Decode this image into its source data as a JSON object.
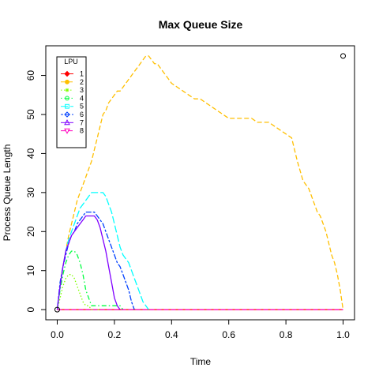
{
  "chart_data": {
    "type": "line",
    "title": "Max Queue Size",
    "xlabel": "Time",
    "ylabel": "Process Queue Length",
    "xlim": [
      -0.04,
      1.04
    ],
    "ylim": [
      -2.6,
      67.6
    ],
    "x_ticks": [
      0.0,
      0.2,
      0.4,
      0.6,
      0.8,
      1.0
    ],
    "x_tick_labels": [
      "0.0",
      "0.2",
      "0.4",
      "0.6",
      "0.8",
      "1.0"
    ],
    "y_ticks": [
      0,
      10,
      20,
      30,
      40,
      50,
      60
    ],
    "y_tick_labels": [
      "0",
      "10",
      "20",
      "30",
      "40",
      "50",
      "60"
    ],
    "legend": {
      "title": "LPU",
      "position": "top-left"
    },
    "series": [
      {
        "name": "1",
        "color": "#FF0000",
        "marker": "diamond",
        "dash": "solid",
        "x": [
          0,
          1.0
        ],
        "y": [
          0,
          0
        ]
      },
      {
        "name": "2",
        "color": "#FFBF00",
        "marker": "circle-filled",
        "dash": "dashed",
        "x": [
          0,
          0.01,
          0.02,
          0.03,
          0.04,
          0.05,
          0.06,
          0.07,
          0.08,
          0.09,
          0.1,
          0.11,
          0.12,
          0.13,
          0.14,
          0.15,
          0.16,
          0.17,
          0.18,
          0.19,
          0.2,
          0.21,
          0.22,
          0.23,
          0.24,
          0.25,
          0.26,
          0.27,
          0.28,
          0.29,
          0.3,
          0.31,
          0.32,
          0.33,
          0.34,
          0.35,
          0.36,
          0.37,
          0.38,
          0.39,
          0.4,
          0.42,
          0.44,
          0.46,
          0.48,
          0.5,
          0.52,
          0.54,
          0.56,
          0.58,
          0.6,
          0.62,
          0.64,
          0.66,
          0.68,
          0.7,
          0.72,
          0.74,
          0.76,
          0.78,
          0.8,
          0.82,
          0.84,
          0.86,
          0.87,
          0.88,
          0.89,
          0.9,
          0.91,
          0.92,
          0.93,
          0.94,
          0.95,
          0.96,
          0.97,
          0.98,
          0.99,
          1.0
        ],
        "y": [
          0,
          6,
          11,
          15,
          19,
          22,
          25,
          28,
          30,
          32,
          34,
          36,
          38,
          41,
          44,
          47,
          50,
          51,
          53,
          54,
          55,
          56,
          56,
          57,
          58,
          59,
          60,
          61,
          62,
          63,
          64,
          65,
          65,
          64,
          63,
          63,
          62,
          61,
          60,
          59,
          58,
          57,
          56,
          55,
          54,
          54,
          53,
          52,
          51,
          50,
          49,
          49,
          49,
          49,
          49,
          48,
          48,
          48,
          47,
          46,
          45,
          44,
          38,
          33,
          32,
          31,
          29,
          27,
          25,
          24,
          22,
          20,
          17,
          14,
          12,
          9,
          5,
          0
        ]
      },
      {
        "name": "3",
        "color": "#80FF00",
        "marker": "star",
        "dash": "dotted",
        "x": [
          0,
          0.01,
          0.02,
          0.03,
          0.04,
          0.05,
          0.06,
          0.07,
          0.08,
          0.09,
          0.1,
          0.11,
          0.12,
          0.13,
          0.14,
          0.15
        ],
        "y": [
          0,
          3,
          6,
          8,
          9,
          9,
          8,
          6,
          4,
          2,
          1,
          1,
          0,
          0,
          0,
          0
        ]
      },
      {
        "name": "4",
        "color": "#00FF40",
        "marker": "circle-open",
        "dash": "dashdot",
        "x": [
          0,
          0.01,
          0.02,
          0.03,
          0.04,
          0.05,
          0.06,
          0.07,
          0.08,
          0.09,
          0.1,
          0.11,
          0.12,
          0.14,
          0.16,
          0.18,
          0.2,
          0.22,
          0.23
        ],
        "y": [
          0,
          5,
          9,
          12,
          14,
          15,
          15,
          14,
          12,
          9,
          5,
          3,
          1,
          1,
          1,
          1,
          1,
          1,
          0
        ]
      },
      {
        "name": "5",
        "color": "#00FFFF",
        "marker": "square-open",
        "dash": "longdash",
        "x": [
          0,
          0.01,
          0.02,
          0.03,
          0.04,
          0.05,
          0.06,
          0.07,
          0.08,
          0.09,
          0.1,
          0.11,
          0.12,
          0.13,
          0.14,
          0.15,
          0.16,
          0.17,
          0.18,
          0.19,
          0.2,
          0.21,
          0.22,
          0.23,
          0.24,
          0.25,
          0.26,
          0.27,
          0.28,
          0.29,
          0.3,
          0.31,
          0.32
        ],
        "y": [
          0,
          6,
          11,
          15,
          18,
          20,
          22,
          24,
          26,
          27,
          28,
          29,
          30,
          30,
          30,
          30,
          30,
          29,
          27,
          25,
          22,
          19,
          16,
          14,
          13,
          12,
          10,
          8,
          6,
          4,
          2,
          1,
          0
        ]
      },
      {
        "name": "6",
        "color": "#0040FF",
        "marker": "diamond-open",
        "dash": "twodash",
        "x": [
          0,
          0.01,
          0.02,
          0.03,
          0.04,
          0.05,
          0.06,
          0.07,
          0.08,
          0.09,
          0.1,
          0.11,
          0.12,
          0.13,
          0.14,
          0.15,
          0.16,
          0.17,
          0.18,
          0.19,
          0.2,
          0.21,
          0.22,
          0.23,
          0.24,
          0.25,
          0.26,
          0.27
        ],
        "y": [
          0,
          7,
          11,
          14,
          17,
          19,
          20,
          22,
          23,
          24,
          25,
          25,
          25,
          25,
          24,
          23,
          22,
          20,
          18,
          16,
          14,
          12,
          11,
          9,
          7,
          5,
          2,
          0
        ]
      },
      {
        "name": "7",
        "color": "#8000FF",
        "marker": "triangle-up",
        "dash": "solid",
        "x": [
          0,
          0.01,
          0.02,
          0.03,
          0.04,
          0.05,
          0.06,
          0.07,
          0.08,
          0.09,
          0.1,
          0.11,
          0.12,
          0.13,
          0.14,
          0.15,
          0.16,
          0.17,
          0.18,
          0.19,
          0.2,
          0.21,
          0.22
        ],
        "y": [
          0,
          6,
          11,
          15,
          17,
          19,
          20,
          21,
          22,
          23,
          24,
          24,
          24,
          24,
          23,
          21,
          18,
          15,
          11,
          7,
          3,
          1,
          0
        ]
      },
      {
        "name": "8",
        "color": "#FF00BF",
        "marker": "triangle-down",
        "dash": "dashed",
        "x": [
          0,
          1.0
        ],
        "y": [
          0,
          0
        ]
      }
    ],
    "annotations": [
      {
        "type": "point",
        "x": 1.0,
        "y": 65,
        "marker": "circle-open",
        "color": "#000000"
      },
      {
        "type": "point",
        "x": 0.0,
        "y": 0,
        "marker": "circle-open",
        "color": "#000000"
      }
    ]
  }
}
